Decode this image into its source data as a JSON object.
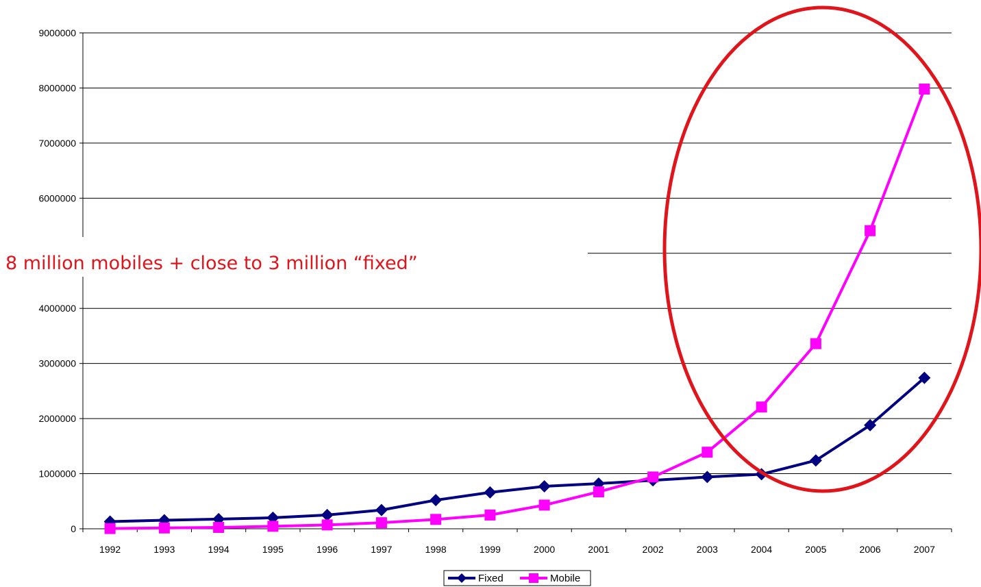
{
  "chart_data": {
    "type": "line",
    "categories": [
      "1992",
      "1993",
      "1994",
      "1995",
      "1996",
      "1997",
      "1998",
      "1999",
      "2000",
      "2001",
      "2002",
      "2003",
      "2004",
      "2005",
      "2006",
      "2007"
    ],
    "series": [
      {
        "name": "Fixed",
        "color": "#000080",
        "marker": "diamond",
        "values": [
          130000,
          155000,
          175000,
          200000,
          250000,
          340000,
          520000,
          660000,
          770000,
          820000,
          880000,
          940000,
          990000,
          1240000,
          1880000,
          2740000
        ]
      },
      {
        "name": "Mobile",
        "color": "#ff00ff",
        "marker": "square",
        "values": [
          5000,
          15000,
          25000,
          45000,
          70000,
          110000,
          170000,
          250000,
          430000,
          670000,
          940000,
          1390000,
          2210000,
          3360000,
          5410000,
          7980000
        ]
      }
    ],
    "y_ticks": [
      "0",
      "1000000",
      "2000000",
      "3000000",
      "4000000",
      "6000000",
      "7000000",
      "8000000",
      "9000000"
    ],
    "ylim": [
      0,
      9000000
    ],
    "grid": "horizontal",
    "legend_position": "bottom",
    "annotation": "8 million mobiles + close to 3 million “fixed”",
    "highlight_color": "#e0151b"
  }
}
